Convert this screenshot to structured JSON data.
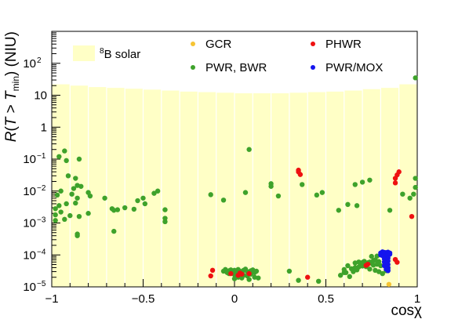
{
  "chart_data": {
    "type": "scatter",
    "xlabel": "cosχ",
    "ylabel": "R(T > T_min) (NIU)",
    "ylabel_parts": {
      "lead": "R",
      "open": "(",
      "t1": "T",
      "gt": " > ",
      "t2": "T",
      "sub": "min",
      "close": ")",
      "unit": "(NIU)"
    },
    "xlim": [
      -1,
      1
    ],
    "ylim": [
      1e-05,
      1000
    ],
    "y_scale": "log",
    "grid": false,
    "legend_position": "top",
    "x_ticks": [
      {
        "value": -1,
        "label": "−1"
      },
      {
        "value": -0.5,
        "label": "−0.5"
      },
      {
        "value": 0,
        "label": "0"
      },
      {
        "value": 0.5,
        "label": "0.5"
      },
      {
        "value": 1,
        "label": "1"
      }
    ],
    "y_ticks": [
      {
        "value": 1e-05,
        "base": "10",
        "exp": "−5"
      },
      {
        "value": 0.0001,
        "base": "10",
        "exp": "−4"
      },
      {
        "value": 0.001,
        "base": "10",
        "exp": "−3"
      },
      {
        "value": 0.01,
        "base": "10",
        "exp": "−2"
      },
      {
        "value": 0.1,
        "base": "10",
        "exp": "−1"
      },
      {
        "value": 1,
        "base": "1",
        "exp": ""
      },
      {
        "value": 10,
        "base": "10",
        "exp": ""
      },
      {
        "value": 100,
        "base": "10",
        "exp": "2"
      }
    ],
    "histogram": {
      "name_sup": "8",
      "name_rest": "B solar",
      "color": "#ffffc6",
      "bins": [
        {
          "x0": -1.0,
          "x1": -0.9,
          "value": 22
        },
        {
          "x0": -0.9,
          "x1": -0.8,
          "value": 20
        },
        {
          "x0": -0.8,
          "x1": -0.7,
          "value": 18
        },
        {
          "x0": -0.7,
          "x1": -0.6,
          "value": 17
        },
        {
          "x0": -0.6,
          "x1": -0.5,
          "value": 16
        },
        {
          "x0": -0.5,
          "x1": -0.4,
          "value": 15
        },
        {
          "x0": -0.4,
          "x1": -0.3,
          "value": 14
        },
        {
          "x0": -0.3,
          "x1": -0.2,
          "value": 13
        },
        {
          "x0": -0.2,
          "x1": -0.1,
          "value": 12.5
        },
        {
          "x0": -0.1,
          "x1": 0.0,
          "value": 12
        },
        {
          "x0": 0.0,
          "x1": 0.1,
          "value": 11.5
        },
        {
          "x0": 0.1,
          "x1": 0.2,
          "value": 11.5
        },
        {
          "x0": 0.2,
          "x1": 0.3,
          "value": 11.5
        },
        {
          "x0": 0.3,
          "x1": 0.4,
          "value": 12
        },
        {
          "x0": 0.4,
          "x1": 0.5,
          "value": 12.5
        },
        {
          "x0": 0.5,
          "x1": 0.6,
          "value": 13
        },
        {
          "x0": 0.6,
          "x1": 0.7,
          "value": 14
        },
        {
          "x0": 0.7,
          "x1": 0.8,
          "value": 15.5
        },
        {
          "x0": 0.8,
          "x1": 0.9,
          "value": 17
        },
        {
          "x0": 0.9,
          "x1": 1.0,
          "value": 22
        }
      ]
    },
    "series": [
      {
        "name": "GCR",
        "color": "#f6c433",
        "points": [
          [
            0.845,
            1.2e-05
          ]
        ]
      },
      {
        "name": "PWR, BWR",
        "color": "#3ea22b",
        "points": [
          [
            0.99,
            35
          ],
          [
            0.08,
            0.2
          ],
          [
            -0.93,
            0.18
          ],
          [
            -0.96,
            0.12
          ],
          [
            -0.85,
            0.1
          ],
          [
            -0.92,
            0.09
          ],
          [
            0.99,
            0.025
          ],
          [
            0.99,
            0.013
          ],
          [
            -0.91,
            0.03
          ],
          [
            -0.87,
            0.025
          ],
          [
            -0.86,
            0.015
          ],
          [
            -0.84,
            0.014
          ],
          [
            -0.88,
            0.012
          ],
          [
            -0.89,
            0.008
          ],
          [
            -0.86,
            0.006
          ],
          [
            -0.95,
            0.01
          ],
          [
            -0.97,
            0.0075
          ],
          [
            -0.8,
            0.009
          ],
          [
            -0.79,
            0.007
          ],
          [
            -0.71,
            0.006
          ],
          [
            -0.42,
            0.01
          ],
          [
            -0.44,
            0.0085
          ],
          [
            -0.5,
            0.006
          ],
          [
            -0.53,
            0.005
          ],
          [
            -0.49,
            0.004
          ],
          [
            -0.6,
            0.003
          ],
          [
            -0.67,
            0.0028
          ],
          [
            -0.64,
            0.0026
          ],
          [
            -0.66,
            0.0025
          ],
          [
            -0.55,
            0.0027
          ],
          [
            -0.38,
            0.0026
          ],
          [
            -0.8,
            0.002
          ],
          [
            -0.85,
            0.0016
          ],
          [
            -0.9,
            0.0017
          ],
          [
            -0.93,
            0.0013
          ],
          [
            -0.98,
            0.0012
          ],
          [
            -0.98,
            0.0018
          ],
          [
            -0.95,
            0.0022
          ],
          [
            -0.98,
            0.0028
          ],
          [
            -0.96,
            0.0035
          ],
          [
            -0.92,
            0.004
          ],
          [
            -0.87,
            0.0042
          ],
          [
            -0.86,
            0.00045
          ],
          [
            -0.86,
            0.0004
          ],
          [
            -0.66,
            0.00055
          ],
          [
            -0.38,
            0.0011
          ],
          [
            -0.38,
            0.0014
          ],
          [
            -0.13,
            0.0077
          ],
          [
            -0.06,
            0.0052
          ],
          [
            0.06,
            0.009
          ],
          [
            0.2,
            0.017
          ],
          [
            0.2,
            0.014
          ],
          [
            0.24,
            0.007
          ],
          [
            0.37,
            0.016
          ],
          [
            0.45,
            0.0075
          ],
          [
            0.48,
            0.009
          ],
          [
            0.57,
            0.0025
          ],
          [
            0.62,
            0.0038
          ],
          [
            0.67,
            0.0035
          ],
          [
            0.66,
            0.016
          ],
          [
            0.7,
            0.019
          ],
          [
            0.74,
            0.022
          ],
          [
            0.85,
            0.0025
          ],
          [
            0.92,
            0.008
          ],
          [
            0.96,
            0.006
          ],
          [
            0.98,
            0.008
          ],
          [
            -0.06,
            3.1e-05
          ],
          [
            -0.05,
            3.5e-05
          ],
          [
            -0.04,
            2.8e-05
          ],
          [
            -0.03,
            3.2e-05
          ],
          [
            -0.02,
            3.4e-05
          ],
          [
            -0.01,
            3e-05
          ],
          [
            0.0,
            3.3e-05
          ],
          [
            0.01,
            2.9e-05
          ],
          [
            0.02,
            3.5e-05
          ],
          [
            0.03,
            3.1e-05
          ],
          [
            0.04,
            2.7e-05
          ],
          [
            0.05,
            3.3e-05
          ],
          [
            0.06,
            3.6e-05
          ],
          [
            0.07,
            3e-05
          ],
          [
            0.08,
            2.5e-05
          ],
          [
            0.09,
            3.2e-05
          ],
          [
            0.1,
            3.4e-05
          ],
          [
            0.11,
            2.8e-05
          ],
          [
            0.12,
            3.1e-05
          ],
          [
            -0.03,
            2.6e-05
          ],
          [
            0.0,
            2.4e-05
          ],
          [
            0.02,
            2.7e-05
          ],
          [
            0.05,
            2.3e-05
          ],
          [
            0.07,
            2.2e-05
          ],
          [
            0.09,
            2.5e-05
          ],
          [
            0.0,
            1.8e-05
          ],
          [
            0.04,
            1.9e-05
          ],
          [
            0.08,
            1.7e-05
          ],
          [
            0.11,
            2e-05
          ],
          [
            0.02,
            2e-05
          ],
          [
            0.13,
            1.9e-05
          ],
          [
            0.3,
            3.1e-05
          ],
          [
            0.35,
            1.6e-05
          ],
          [
            0.46,
            1.5e-05
          ],
          [
            0.58,
            2.3e-05
          ],
          [
            0.6,
            2.8e-05
          ],
          [
            0.65,
            3e-05
          ],
          [
            0.66,
            5.6e-05
          ],
          [
            0.68,
            6e-05
          ],
          [
            0.69,
            5.3e-05
          ],
          [
            0.7,
            5.8e-05
          ],
          [
            0.71,
            6.3e-05
          ],
          [
            0.72,
            5.2e-05
          ],
          [
            0.73,
            5.7e-05
          ],
          [
            0.74,
            6e-05
          ],
          [
            0.75,
            5.5e-05
          ],
          [
            0.76,
            4.8e-05
          ],
          [
            0.76,
            6.6e-05
          ],
          [
            0.77,
            7e-05
          ],
          [
            0.78,
            5.1e-05
          ],
          [
            0.79,
            6.2e-05
          ],
          [
            0.8,
            4.6e-05
          ],
          [
            0.72,
            4.3e-05
          ],
          [
            0.7,
            4.5e-05
          ],
          [
            0.68,
            4.2e-05
          ],
          [
            0.66,
            4e-05
          ],
          [
            0.64,
            3.7e-05
          ],
          [
            0.67,
            3.4e-05
          ],
          [
            0.62,
            4.6e-05
          ],
          [
            0.74,
            3.6e-05
          ],
          [
            0.77,
            3.3e-05
          ],
          [
            0.63,
            2.1e-05
          ],
          [
            0.61,
            2.8e-05
          ],
          [
            0.6,
            3.5e-05
          ],
          [
            0.75,
            9e-05
          ],
          [
            0.78,
            9.2e-05
          ],
          [
            0.79,
            3e-05
          ],
          [
            0.81,
            2.6e-05
          ],
          [
            0.83,
            3.2e-05
          ],
          [
            0.84,
            4e-05
          ]
        ]
      },
      {
        "name": "PHWR",
        "color": "#ee1111",
        "points": [
          [
            0.35,
            0.045
          ],
          [
            0.35,
            0.04
          ],
          [
            0.36,
            0.033
          ],
          [
            0.88,
            0.025
          ],
          [
            0.89,
            0.032
          ],
          [
            0.9,
            0.04
          ],
          [
            0.88,
            0.018
          ],
          [
            0.97,
            0.0016
          ],
          [
            0.88,
            7.2e-05
          ],
          [
            0.89,
            5.9e-05
          ],
          [
            0.73,
            5.1e-05
          ],
          [
            0.72,
            4.7e-05
          ],
          [
            -0.12,
            3.3e-05
          ],
          [
            -0.13,
            2.2e-05
          ],
          [
            -0.02,
            2.6e-05
          ],
          [
            0.02,
            2.3e-05
          ],
          [
            0.03,
            2.7e-05
          ],
          [
            0.04,
            2.5e-05
          ],
          [
            0.08,
            2.6e-05
          ],
          [
            0.4,
            2e-05
          ]
        ]
      },
      {
        "name": "PWR/MOX",
        "color": "#1515ee",
        "points": [
          [
            0.8,
            0.000115
          ],
          [
            0.81,
            0.000125
          ],
          [
            0.82,
            0.00012
          ],
          [
            0.83,
            0.000118
          ],
          [
            0.84,
            0.000122
          ],
          [
            0.85,
            0.000115
          ],
          [
            0.8,
            0.0001
          ],
          [
            0.81,
            9.5e-05
          ],
          [
            0.82,
            0.000105
          ],
          [
            0.83,
            9.8e-05
          ],
          [
            0.84,
            0.0001
          ],
          [
            0.85,
            0.000105
          ],
          [
            0.82,
            9e-05
          ],
          [
            0.83,
            8.5e-05
          ],
          [
            0.84,
            8e-05
          ],
          [
            0.82,
            7.5e-05
          ],
          [
            0.83,
            7e-05
          ],
          [
            0.84,
            6.5e-05
          ],
          [
            0.82,
            6e-05
          ],
          [
            0.83,
            5.5e-05
          ],
          [
            0.84,
            5e-05
          ],
          [
            0.82,
            4.6e-05
          ],
          [
            0.83,
            4.2e-05
          ],
          [
            0.84,
            3.9e-05
          ],
          [
            0.83,
            3.6e-05
          ],
          [
            0.84,
            3.4e-05
          ],
          [
            0.84,
            3.2e-05
          ]
        ]
      }
    ]
  }
}
